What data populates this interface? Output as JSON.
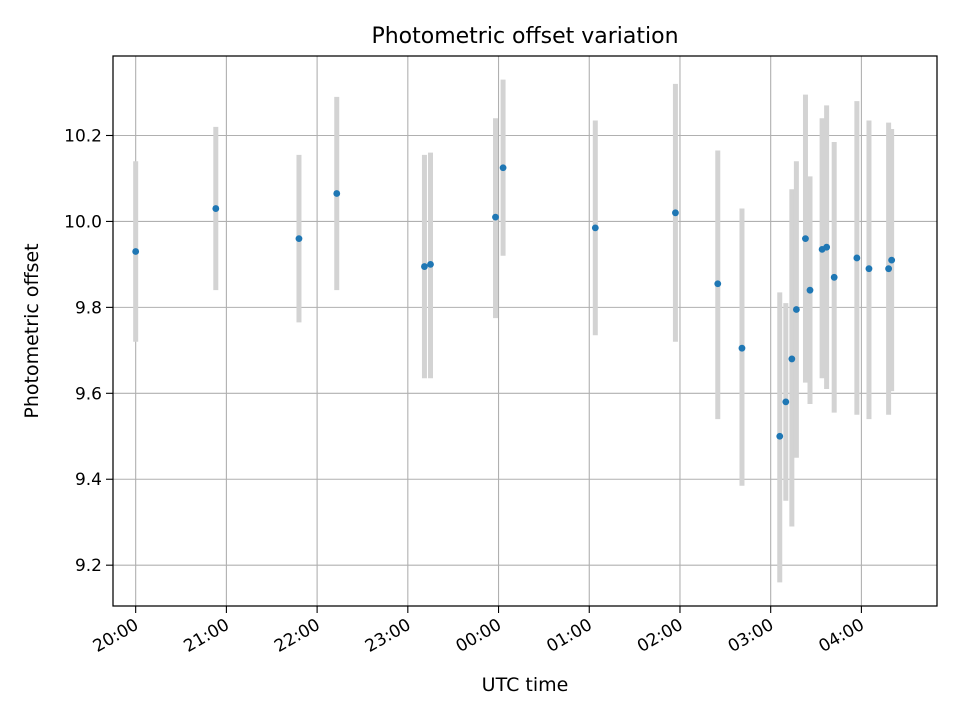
{
  "chart_data": {
    "type": "scatter",
    "title": "Photometric offset variation",
    "xlabel": "UTC time",
    "ylabel": "Photometric offset",
    "grid": true,
    "xlim": [
      "19:45",
      "04:50"
    ],
    "ylim": [
      9.105,
      10.385
    ],
    "x_ticks": [
      "20:00",
      "21:00",
      "22:00",
      "23:00",
      "00:00",
      "01:00",
      "02:00",
      "03:00",
      "04:00"
    ],
    "y_ticks": [
      "9.2",
      "9.4",
      "9.6",
      "9.8",
      "10.0",
      "10.2"
    ],
    "colors": {
      "point": "#1f77b4",
      "errorbar": "#d3d3d3",
      "grid": "#b0b0b0",
      "axes": "#000000"
    },
    "points": [
      {
        "x": "20:00",
        "y": 9.93,
        "ylo": 9.72,
        "yhi": 10.14
      },
      {
        "x": "20:53",
        "y": 10.03,
        "ylo": 9.84,
        "yhi": 10.22
      },
      {
        "x": "21:48",
        "y": 9.96,
        "ylo": 9.765,
        "yhi": 10.155
      },
      {
        "x": "22:13",
        "y": 10.065,
        "ylo": 9.84,
        "yhi": 10.29
      },
      {
        "x": "23:11",
        "y": 9.895,
        "ylo": 9.635,
        "yhi": 10.155
      },
      {
        "x": "23:15",
        "y": 9.9,
        "ylo": 9.635,
        "yhi": 10.16
      },
      {
        "x": "23:58",
        "y": 10.01,
        "ylo": 9.775,
        "yhi": 10.24
      },
      {
        "x": "00:03",
        "y": 10.125,
        "ylo": 9.92,
        "yhi": 10.33
      },
      {
        "x": "01:04",
        "y": 9.985,
        "ylo": 9.735,
        "yhi": 10.235
      },
      {
        "x": "01:57",
        "y": 10.02,
        "ylo": 9.72,
        "yhi": 10.32
      },
      {
        "x": "02:25",
        "y": 9.855,
        "ylo": 9.54,
        "yhi": 10.165
      },
      {
        "x": "02:41",
        "y": 9.705,
        "ylo": 9.385,
        "yhi": 10.03
      },
      {
        "x": "03:06",
        "y": 9.5,
        "ylo": 9.16,
        "yhi": 9.835
      },
      {
        "x": "03:10",
        "y": 9.58,
        "ylo": 9.35,
        "yhi": 9.81
      },
      {
        "x": "03:14",
        "y": 9.68,
        "ylo": 9.29,
        "yhi": 10.075
      },
      {
        "x": "03:17",
        "y": 9.795,
        "ylo": 9.45,
        "yhi": 10.14
      },
      {
        "x": "03:23",
        "y": 9.96,
        "ylo": 9.625,
        "yhi": 10.295
      },
      {
        "x": "03:26",
        "y": 9.84,
        "ylo": 9.575,
        "yhi": 10.105
      },
      {
        "x": "03:34",
        "y": 9.935,
        "ylo": 9.635,
        "yhi": 10.24
      },
      {
        "x": "03:37",
        "y": 9.94,
        "ylo": 9.61,
        "yhi": 10.27
      },
      {
        "x": "03:42",
        "y": 9.87,
        "ylo": 9.555,
        "yhi": 10.185
      },
      {
        "x": "03:57",
        "y": 9.915,
        "ylo": 9.55,
        "yhi": 10.28
      },
      {
        "x": "04:05",
        "y": 9.89,
        "ylo": 9.54,
        "yhi": 10.235
      },
      {
        "x": "04:18",
        "y": 9.89,
        "ylo": 9.55,
        "yhi": 10.23
      },
      {
        "x": "04:20",
        "y": 9.91,
        "ylo": 9.605,
        "yhi": 10.215
      }
    ]
  }
}
